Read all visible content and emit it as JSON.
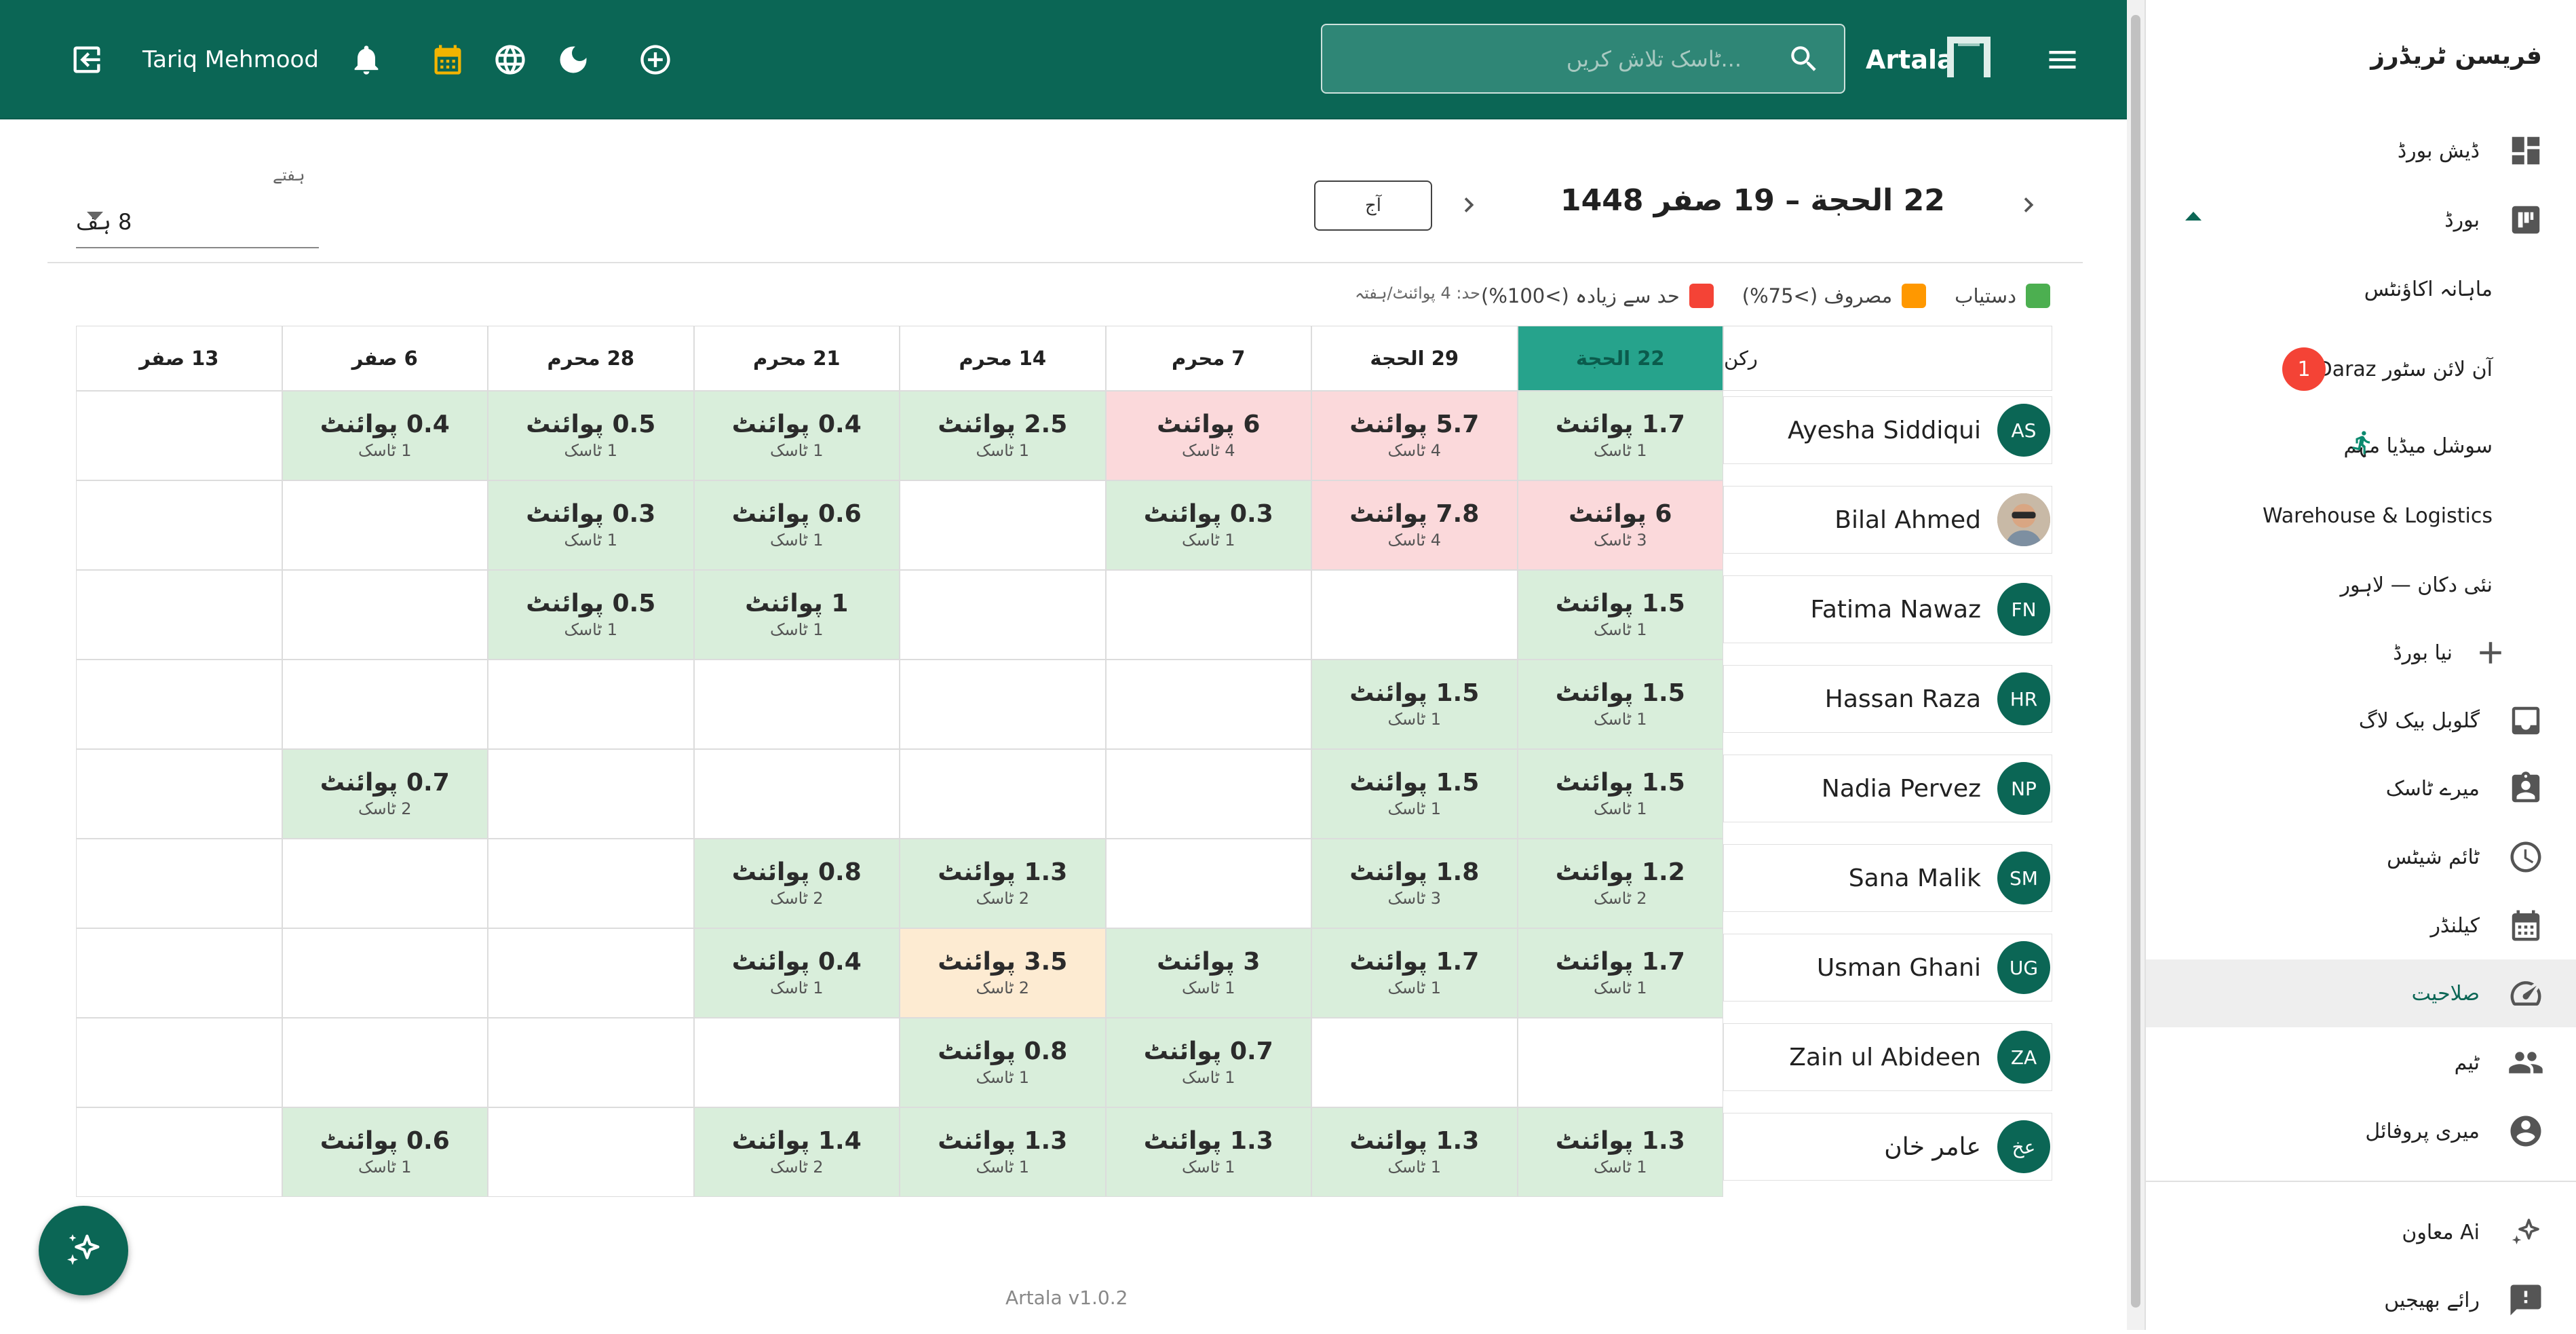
{
  "appbar": {
    "username": "Tariq Mehmood",
    "search_placeholder": "ٹاسک تلاش کریں...",
    "brand": "Artala",
    "icons": [
      "logout-icon",
      "notifications-icon",
      "calendar-icon",
      "globe-icon",
      "dark-mode-icon",
      "add-circle-icon",
      "search-icon",
      "menu-icon"
    ],
    "calendar_icon_color": "#f2b400"
  },
  "drawer": {
    "title": "فریسن ٹریڈرز",
    "dashboard": "ڈیش بورڈ",
    "boards": "بورڈ",
    "board_items": {
      "monthly_accounts": "ماہانہ اکاؤنٹس",
      "daraz_store": "آن لائن سٹور Daraz",
      "daraz_badge": "1",
      "social_media": "سوشل میڈیا مہم",
      "warehouse": "Warehouse & Logistics",
      "new_shop": "نئی دکان — لاہور",
      "new_board": "نیا بورڈ"
    },
    "global_backlog": "گلوبل بیک لاگ",
    "my_tasks": "میرے ٹاسک",
    "timesheets": "ٹائم شیٹس",
    "calendar": "کیلنڈر",
    "capacity": "صلاحیت",
    "team": "ٹیم",
    "my_profile": "میری پروفائل",
    "ai_assistant": "Ai معاون",
    "feedback": "رائے بھیجیں"
  },
  "header": {
    "date_range": "22 الحجة – 19 صفر 1448",
    "today_button": "آج",
    "weeks_label": "ہفتے",
    "weeks_value": "8 ہف"
  },
  "legend": {
    "available": "دستیاب",
    "busy": "مصروف (>75%)",
    "over": "حد سے زیادہ (>100%)",
    "limit_note": "حد: 4 پوائنٹ/ہفتہ",
    "colors": {
      "available": "#4caf50",
      "busy": "#ff9800",
      "over": "#f44336",
      "primary": "#0b6655"
    }
  },
  "table": {
    "member_header": "رکن",
    "columns": [
      "22 الحجة",
      "29 الحجة",
      "7 محرم",
      "14 محرم",
      "21 محرم",
      "28 محرم",
      "6 صفر",
      "13 صفر"
    ],
    "current_column": 0,
    "rows": [
      {
        "name": "Ayesha Siddiqui",
        "initials": "AS",
        "cells": [
          {
            "p": "1.7 پوائنٹ",
            "t": "1 ٹاسک",
            "s": "ok"
          },
          {
            "p": "5.7 پوائنٹ",
            "t": "4 ٹاسک",
            "s": "over"
          },
          {
            "p": "6 پوائنٹ",
            "t": "4 ٹاسک",
            "s": "over"
          },
          {
            "p": "2.5 پوائنٹ",
            "t": "1 ٹاسک",
            "s": "ok"
          },
          {
            "p": "0.4 پوائنٹ",
            "t": "1 ٹاسک",
            "s": "ok"
          },
          {
            "p": "0.5 پوائنٹ",
            "t": "1 ٹاسک",
            "s": "ok"
          },
          {
            "p": "0.4 پوائنٹ",
            "t": "1 ٹاسک",
            "s": "ok"
          },
          null
        ]
      },
      {
        "name": "Bilal Ahmed",
        "initials": "",
        "photo": true,
        "cells": [
          {
            "p": "6 پوائنٹ",
            "t": "3 ٹاسک",
            "s": "over"
          },
          {
            "p": "7.8 پوائنٹ",
            "t": "4 ٹاسک",
            "s": "over"
          },
          {
            "p": "0.3 پوائنٹ",
            "t": "1 ٹاسک",
            "s": "ok"
          },
          null,
          {
            "p": "0.6 پوائنٹ",
            "t": "1 ٹاسک",
            "s": "ok"
          },
          {
            "p": "0.3 پوائنٹ",
            "t": "1 ٹاسک",
            "s": "ok"
          },
          null,
          null
        ]
      },
      {
        "name": "Fatima Nawaz",
        "initials": "FN",
        "cells": [
          {
            "p": "1.5 پوائنٹ",
            "t": "1 ٹاسک",
            "s": "ok"
          },
          null,
          null,
          null,
          {
            "p": "1 پوائنٹ",
            "t": "1 ٹاسک",
            "s": "ok"
          },
          {
            "p": "0.5 پوائنٹ",
            "t": "1 ٹاسک",
            "s": "ok"
          },
          null,
          null
        ]
      },
      {
        "name": "Hassan Raza",
        "initials": "HR",
        "cells": [
          {
            "p": "1.5 پوائنٹ",
            "t": "1 ٹاسک",
            "s": "ok"
          },
          {
            "p": "1.5 پوائنٹ",
            "t": "1 ٹاسک",
            "s": "ok"
          },
          null,
          null,
          null,
          null,
          null,
          null
        ]
      },
      {
        "name": "Nadia Pervez",
        "initials": "NP",
        "cells": [
          {
            "p": "1.5 پوائنٹ",
            "t": "1 ٹاسک",
            "s": "ok"
          },
          {
            "p": "1.5 پوائنٹ",
            "t": "1 ٹاسک",
            "s": "ok"
          },
          null,
          null,
          null,
          null,
          {
            "p": "0.7 پوائنٹ",
            "t": "2 ٹاسک",
            "s": "ok"
          },
          null
        ]
      },
      {
        "name": "Sana Malik",
        "initials": "SM",
        "cells": [
          {
            "p": "1.2 پوائنٹ",
            "t": "2 ٹاسک",
            "s": "ok"
          },
          {
            "p": "1.8 پوائنٹ",
            "t": "3 ٹاسک",
            "s": "ok"
          },
          null,
          {
            "p": "1.3 پوائنٹ",
            "t": "2 ٹاسک",
            "s": "ok"
          },
          {
            "p": "0.8 پوائنٹ",
            "t": "2 ٹاسک",
            "s": "ok"
          },
          null,
          null,
          null
        ]
      },
      {
        "name": "Usman Ghani",
        "initials": "UG",
        "cells": [
          {
            "p": "1.7 پوائنٹ",
            "t": "1 ٹاسک",
            "s": "ok"
          },
          {
            "p": "1.7 پوائنٹ",
            "t": "1 ٹاسک",
            "s": "ok"
          },
          {
            "p": "3 پوائنٹ",
            "t": "1 ٹاسک",
            "s": "ok"
          },
          {
            "p": "3.5 پوائنٹ",
            "t": "2 ٹاسک",
            "s": "busy"
          },
          {
            "p": "0.4 پوائنٹ",
            "t": "1 ٹاسک",
            "s": "ok"
          },
          null,
          null,
          null
        ]
      },
      {
        "name": "Zain ul Abideen",
        "initials": "ZA",
        "cells": [
          null,
          null,
          {
            "p": "0.7 پوائنٹ",
            "t": "1 ٹاسک",
            "s": "ok"
          },
          {
            "p": "0.8 پوائنٹ",
            "t": "1 ٹاسک",
            "s": "ok"
          },
          null,
          null,
          null,
          null
        ]
      },
      {
        "name": "عامر خان",
        "initials": "عخ",
        "cells": [
          {
            "p": "1.3 پوائنٹ",
            "t": "1 ٹاسک",
            "s": "ok"
          },
          {
            "p": "1.3 پوائنٹ",
            "t": "1 ٹاسک",
            "s": "ok"
          },
          {
            "p": "1.3 پوائنٹ",
            "t": "1 ٹاسک",
            "s": "ok"
          },
          {
            "p": "1.3 پوائنٹ",
            "t": "1 ٹاسک",
            "s": "ok"
          },
          {
            "p": "1.4 پوائنٹ",
            "t": "2 ٹاسک",
            "s": "ok"
          },
          null,
          {
            "p": "0.6 پوائنٹ",
            "t": "1 ٹاسک",
            "s": "ok"
          },
          null
        ]
      }
    ]
  },
  "footer": {
    "version": "Artala v1.0.2"
  }
}
